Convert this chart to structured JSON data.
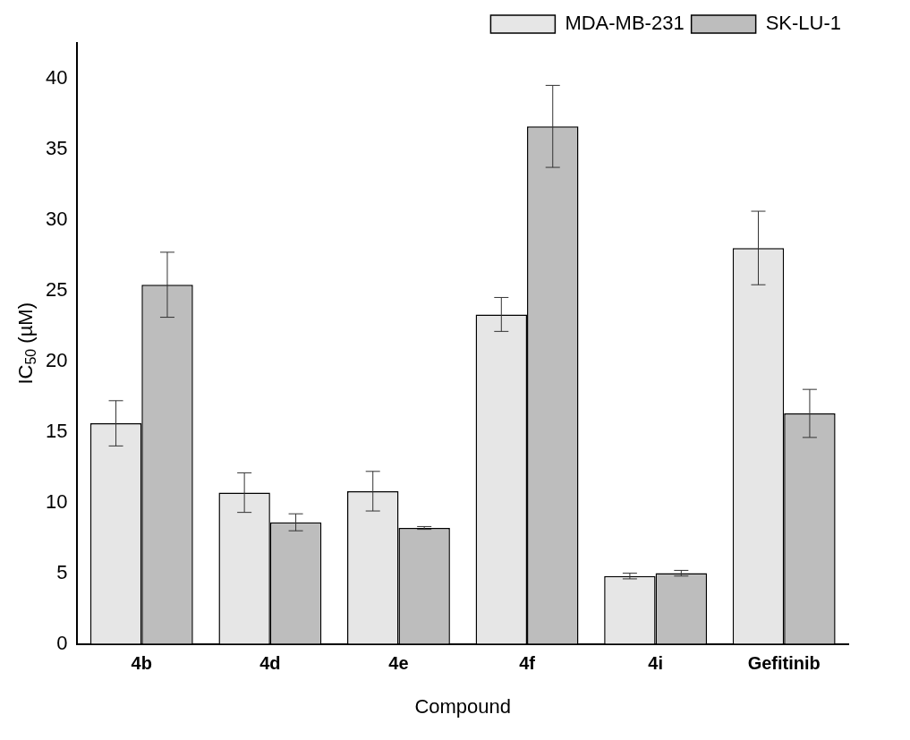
{
  "chart_data": {
    "type": "bar",
    "xlabel": "Compound",
    "ylabel": "IC$_{50}$ (µM)",
    "categories": [
      "4b",
      "4d",
      "4e",
      "4f",
      "4i",
      "Gefitinib"
    ],
    "series": [
      {
        "name": "MDA-MB-231",
        "color": "#e6e6e6",
        "values": [
          15.6,
          10.7,
          10.8,
          23.3,
          4.8,
          28.0
        ],
        "errors": [
          1.6,
          1.4,
          1.4,
          1.2,
          0.2,
          2.6
        ]
      },
      {
        "name": "SK-LU-1",
        "color": "#bdbdbd",
        "values": [
          25.4,
          8.6,
          8.2,
          36.6,
          5.0,
          16.3
        ],
        "errors": [
          2.3,
          0.6,
          0.1,
          2.9,
          0.2,
          1.7
        ]
      }
    ],
    "ylim": [
      0,
      42.5
    ],
    "yticks": [
      0,
      5,
      10,
      15,
      20,
      25,
      30,
      35,
      40
    ],
    "grid": false,
    "legend": "top right"
  }
}
